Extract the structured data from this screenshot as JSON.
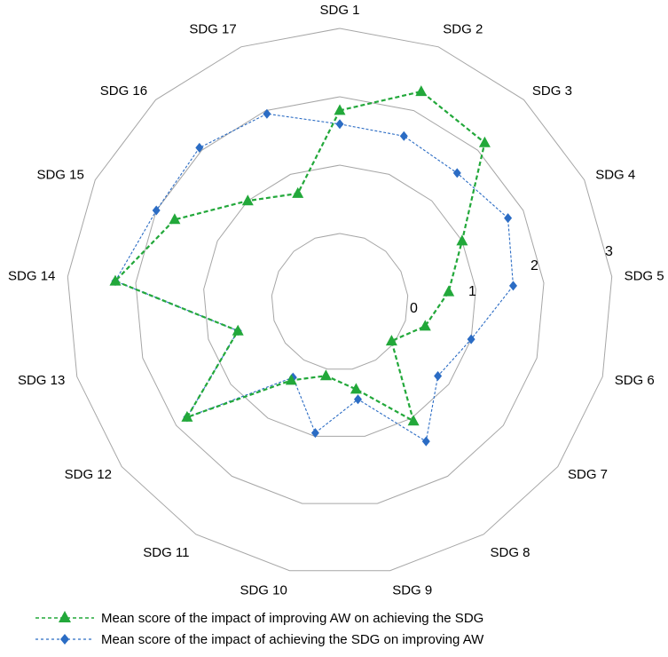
{
  "chart_data": {
    "type": "radar",
    "categories": [
      "SDG 1",
      "SDG 2",
      "SDG 3",
      "SDG 4",
      "SDG 5",
      "SDG 6",
      "SDG 7",
      "SDG 8",
      "SDG 9",
      "SDG 10",
      "SDG 11",
      "SDG 12",
      "SDG 13",
      "SDG 14",
      "SDG 15",
      "SDG 16",
      "SDG 17"
    ],
    "rlim": [
      -1,
      3
    ],
    "ticks": [
      0,
      1,
      2,
      3
    ],
    "tick_labels": [
      "0",
      "1",
      "2",
      "3"
    ],
    "grid": true,
    "series": [
      {
        "name": "Mean score of the impact of improving AW on achieving the SDG",
        "color": "#22a83a",
        "marker": "triangle",
        "values": [
          1.8,
          2.3,
          2.15,
          1.0,
          0.6,
          0.3,
          -0.05,
          1.05,
          0.3,
          0.1,
          0.35,
          1.8,
          0.55,
          2.3,
          1.7,
          1.0,
          0.7
        ]
      },
      {
        "name": "Mean score of the impact of achieving the SDG on improving AW",
        "color": "#2b6cc4",
        "marker": "diamond",
        "values": [
          1.6,
          1.6,
          1.55,
          1.75,
          1.55,
          1.0,
          0.8,
          1.4,
          0.45,
          0.95,
          0.3,
          1.8,
          0.55,
          2.3,
          2.0,
          2.05,
          1.95
        ]
      }
    ],
    "legend_position": "bottom"
  }
}
